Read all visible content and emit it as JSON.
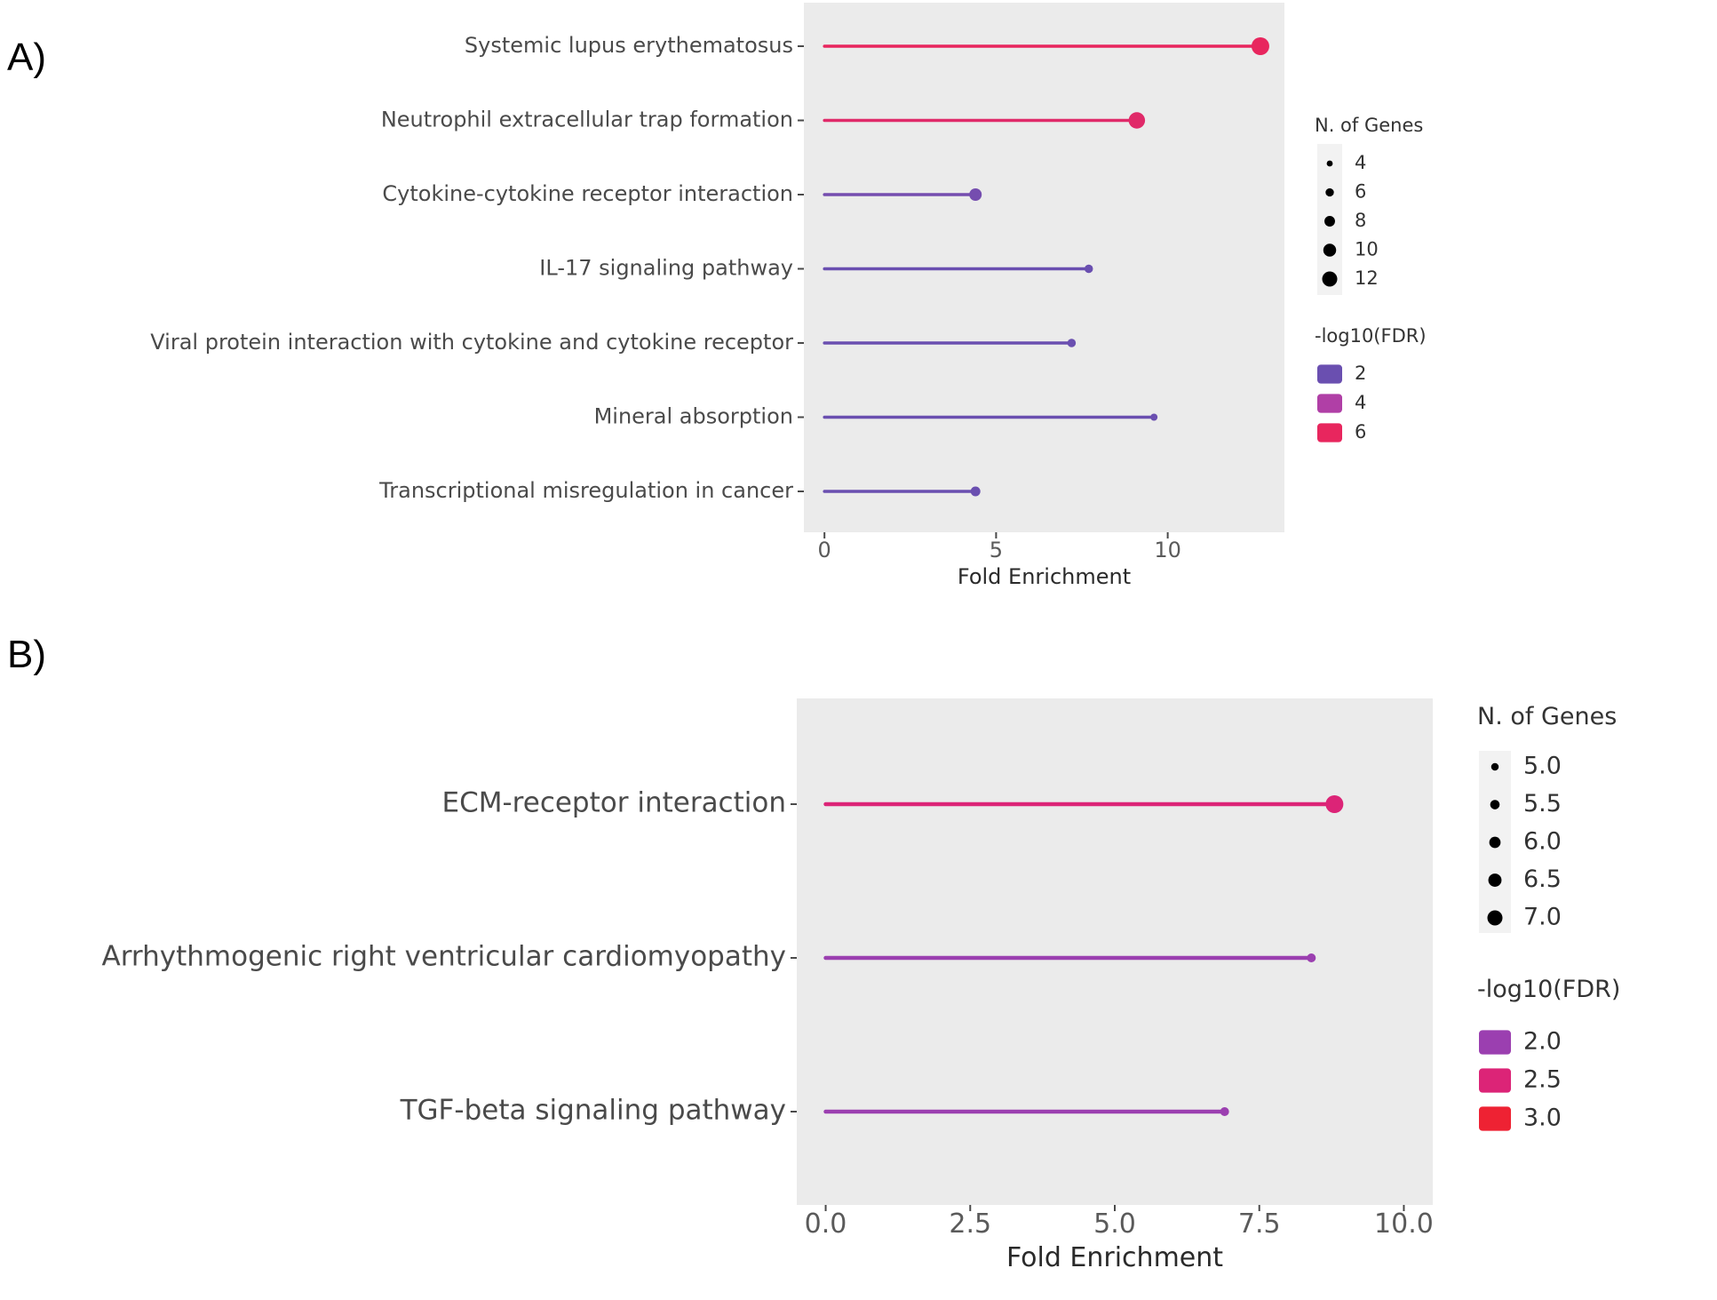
{
  "panels": {
    "a": "A)",
    "b": "B)"
  },
  "chart_data": [
    {
      "type": "lollipop",
      "xlabel": "Fold Enrichment",
      "xlim": [
        -0.6,
        13.4
      ],
      "xticks": [
        0,
        5,
        10
      ],
      "xtick_labels": [
        "0",
        "5",
        "10"
      ],
      "categories": [
        "Systemic lupus erythematosus",
        "Neutrophil extracellular trap formation",
        "Cytokine-cytokine receptor interaction",
        "IL-17 signaling pathway",
        "Viral protein interaction with cytokine and cytokine receptor",
        "Mineral absorption",
        "Transcriptional misregulation in cancer"
      ],
      "values": [
        12.7,
        9.1,
        4.4,
        7.7,
        7.2,
        9.6,
        4.4
      ],
      "n_genes": [
        12,
        11,
        8,
        5,
        5,
        4,
        6
      ],
      "neglog10_fdr": [
        6.3,
        5.7,
        2.3,
        2.0,
        2.0,
        2.0,
        1.4
      ],
      "grid": false,
      "legend_position": "right",
      "size_legend": {
        "title": "N. of Genes",
        "values": [
          4,
          6,
          8,
          10,
          12
        ],
        "labels": [
          "4",
          "6",
          "8",
          "10",
          "12"
        ]
      },
      "color_legend": {
        "title": "-log10(FDR)",
        "values": [
          2,
          4,
          6
        ],
        "labels": [
          "2",
          "4",
          "6"
        ],
        "colors": [
          "#6a4fb0",
          "#b03fa6",
          "#e8265e"
        ]
      }
    },
    {
      "type": "lollipop",
      "xlabel": "Fold Enrichment",
      "xlim": [
        -0.5,
        10.5
      ],
      "xticks": [
        0,
        2.5,
        5,
        7.5,
        10
      ],
      "xtick_labels": [
        "0.0",
        "2.5",
        "5.0",
        "7.5",
        "10.0"
      ],
      "categories": [
        "ECM-receptor interaction",
        "Arrhythmogenic right ventricular cardiomyopathy",
        "TGF-beta signaling pathway"
      ],
      "values": [
        8.8,
        8.4,
        6.9
      ],
      "n_genes": [
        7.0,
        5.0,
        5.0
      ],
      "neglog10_fdr": [
        2.5,
        2.0,
        1.3
      ],
      "grid": false,
      "legend_position": "right",
      "size_legend": {
        "title": "N. of Genes",
        "values": [
          5.0,
          5.5,
          6.0,
          6.5,
          7.0
        ],
        "labels": [
          "5.0",
          "5.5",
          "6.0",
          "6.5",
          "7.0"
        ]
      },
      "color_legend": {
        "title": "-log10(FDR)",
        "values": [
          2.0,
          2.5,
          3.0
        ],
        "labels": [
          "2.0",
          "2.5",
          "3.0"
        ],
        "colors": [
          "#9b3fb0",
          "#dc2477",
          "#ee2233"
        ]
      }
    }
  ]
}
